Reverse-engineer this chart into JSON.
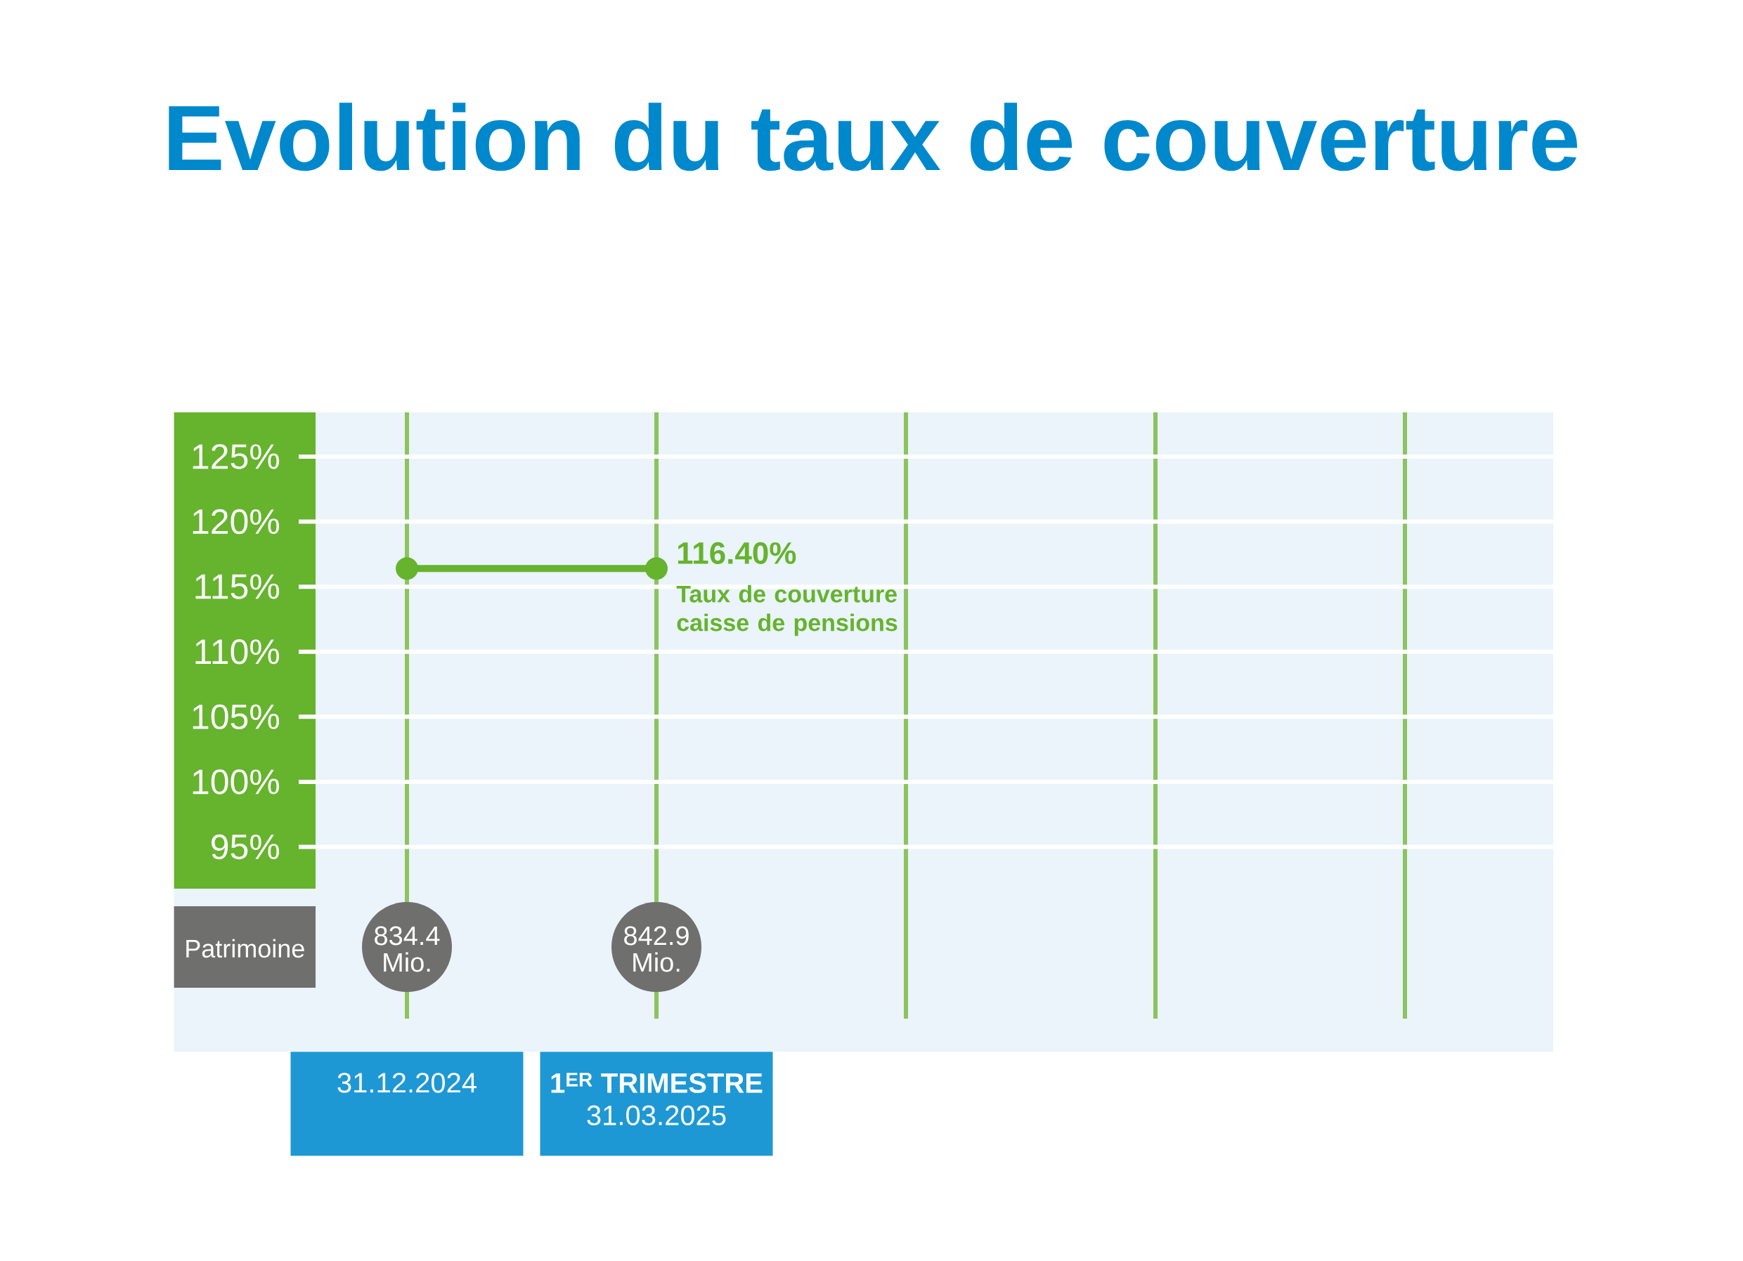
{
  "chart_data": {
    "type": "line",
    "title": "Evolution du taux de couverture",
    "categories": [
      "31.12.2024",
      "**1$^{ER}$ TRIMESTRE** 31.03.2025",
      null,
      null,
      null
    ],
    "series": [
      {
        "name": "Taux de couverture caisse de pensions",
        "color": "#66b32e",
        "values": [
          116.4,
          116.4,
          null,
          null,
          null
        ],
        "value_labels": [
          null,
          "116.40%",
          null,
          null,
          null
        ]
      }
    ],
    "ylim": [
      81.8,
      128.4
    ],
    "yticks": [
      {
        "value": 95,
        "label": "95%"
      },
      {
        "value": 100,
        "label": "100%"
      },
      {
        "value": 105,
        "label": "105%"
      },
      {
        "value": 110,
        "label": "110%"
      },
      {
        "value": 115,
        "label": "115%"
      },
      {
        "value": 120,
        "label": "120%"
      },
      {
        "value": 125,
        "label": "125%"
      }
    ],
    "grid": true,
    "marker": "circle",
    "line_style": "solid",
    "annotations": [
      "Patrimoine",
      "834.4 Mio.",
      "842.9 Mio."
    ]
  }
}
